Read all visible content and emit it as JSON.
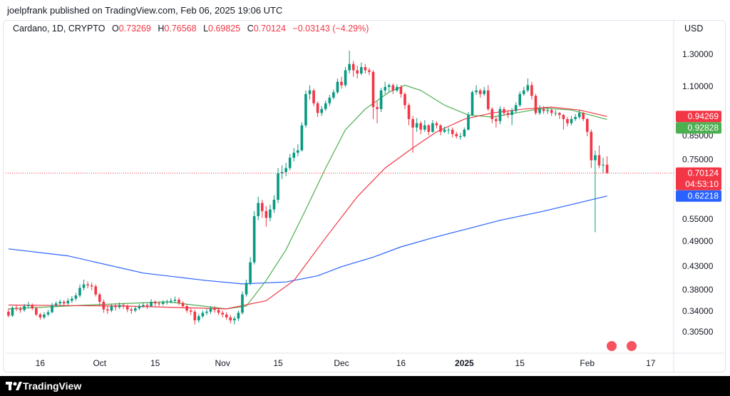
{
  "header": {
    "published": "joelpfrank published on TradingView.com, Feb 06, 2025 19:06 UTC",
    "brand": "TradingView"
  },
  "chart_data": {
    "type": "candlestick",
    "title": "Cardano, 1D, CRYPTO",
    "ohlc_letters": [
      "O",
      "H",
      "L",
      "C"
    ],
    "change_label": "−0.03143 (−4.29%)",
    "currency": "USD",
    "countdown": "04:53:10",
    "up_color": "#089981",
    "down_color": "#f23645",
    "log_scale": true,
    "grid": false,
    "ylim": [
      0.2737,
      1.549
    ],
    "yticks": [
      {
        "value": 1.3,
        "label": "1.30000"
      },
      {
        "value": 1.1,
        "label": "1.10000"
      },
      {
        "value": 0.85,
        "label": "0.85000"
      },
      {
        "value": 0.75,
        "label": "0.75000"
      },
      {
        "value": 0.55,
        "label": "0.55000"
      },
      {
        "value": 0.49,
        "label": "0.49000"
      },
      {
        "value": 0.43,
        "label": "0.43000"
      },
      {
        "value": 0.38,
        "label": "0.38000"
      },
      {
        "value": 0.34,
        "label": "0.34000"
      },
      {
        "value": 0.305,
        "label": "0.30500"
      }
    ],
    "xlim": [
      -0.7,
      167.8
    ],
    "xticks": [
      {
        "value": 8,
        "label": "16"
      },
      {
        "value": 23,
        "label": "Oct"
      },
      {
        "value": 37,
        "label": "15"
      },
      {
        "value": 54,
        "label": "Nov"
      },
      {
        "value": 68,
        "label": "15"
      },
      {
        "value": 84,
        "label": "Dec"
      },
      {
        "value": 99,
        "label": "16"
      },
      {
        "value": 115,
        "label": "2025"
      },
      {
        "value": 129,
        "label": "15"
      },
      {
        "value": 146,
        "label": "Feb"
      },
      {
        "value": 162,
        "label": "17"
      }
    ],
    "candles": [
      [
        0.34,
        0.346,
        0.33,
        0.333
      ],
      [
        0.333,
        0.35,
        0.331,
        0.347
      ],
      [
        0.347,
        0.352,
        0.341,
        0.345
      ],
      [
        0.345,
        0.349,
        0.338,
        0.343
      ],
      [
        0.343,
        0.354,
        0.34,
        0.35
      ],
      [
        0.35,
        0.358,
        0.346,
        0.352
      ],
      [
        0.352,
        0.355,
        0.343,
        0.346
      ],
      [
        0.346,
        0.349,
        0.332,
        0.335
      ],
      [
        0.335,
        0.338,
        0.326,
        0.33
      ],
      [
        0.33,
        0.339,
        0.327,
        0.335
      ],
      [
        0.335,
        0.343,
        0.332,
        0.339
      ],
      [
        0.339,
        0.356,
        0.337,
        0.352
      ],
      [
        0.352,
        0.359,
        0.348,
        0.355
      ],
      [
        0.355,
        0.362,
        0.35,
        0.358
      ],
      [
        0.358,
        0.361,
        0.35,
        0.355
      ],
      [
        0.355,
        0.365,
        0.352,
        0.36
      ],
      [
        0.36,
        0.369,
        0.356,
        0.364
      ],
      [
        0.364,
        0.375,
        0.36,
        0.37
      ],
      [
        0.37,
        0.392,
        0.366,
        0.385
      ],
      [
        0.385,
        0.402,
        0.38,
        0.392
      ],
      [
        0.392,
        0.398,
        0.384,
        0.39
      ],
      [
        0.39,
        0.396,
        0.38,
        0.388
      ],
      [
        0.388,
        0.392,
        0.368,
        0.372
      ],
      [
        0.372,
        0.375,
        0.35,
        0.358
      ],
      [
        0.358,
        0.362,
        0.338,
        0.344
      ],
      [
        0.344,
        0.35,
        0.336,
        0.342
      ],
      [
        0.342,
        0.354,
        0.339,
        0.35
      ],
      [
        0.35,
        0.355,
        0.342,
        0.348
      ],
      [
        0.348,
        0.357,
        0.345,
        0.352
      ],
      [
        0.352,
        0.356,
        0.345,
        0.35
      ],
      [
        0.35,
        0.353,
        0.339,
        0.344
      ],
      [
        0.344,
        0.348,
        0.336,
        0.342
      ],
      [
        0.342,
        0.35,
        0.339,
        0.346
      ],
      [
        0.346,
        0.354,
        0.343,
        0.35
      ],
      [
        0.35,
        0.357,
        0.347,
        0.352
      ],
      [
        0.352,
        0.355,
        0.345,
        0.35
      ],
      [
        0.35,
        0.363,
        0.348,
        0.358
      ],
      [
        0.358,
        0.361,
        0.35,
        0.355
      ],
      [
        0.355,
        0.359,
        0.35,
        0.354
      ],
      [
        0.354,
        0.361,
        0.351,
        0.357
      ],
      [
        0.357,
        0.362,
        0.353,
        0.358
      ],
      [
        0.358,
        0.365,
        0.355,
        0.36
      ],
      [
        0.36,
        0.368,
        0.356,
        0.362
      ],
      [
        0.362,
        0.366,
        0.352,
        0.356
      ],
      [
        0.356,
        0.359,
        0.346,
        0.35
      ],
      [
        0.35,
        0.353,
        0.338,
        0.342
      ],
      [
        0.342,
        0.346,
        0.334,
        0.34
      ],
      [
        0.34,
        0.343,
        0.318,
        0.325
      ],
      [
        0.325,
        0.336,
        0.321,
        0.332
      ],
      [
        0.332,
        0.342,
        0.329,
        0.338
      ],
      [
        0.338,
        0.345,
        0.334,
        0.34
      ],
      [
        0.34,
        0.35,
        0.336,
        0.346
      ],
      [
        0.346,
        0.35,
        0.338,
        0.343
      ],
      [
        0.343,
        0.347,
        0.334,
        0.338
      ],
      [
        0.338,
        0.342,
        0.33,
        0.335
      ],
      [
        0.335,
        0.339,
        0.326,
        0.33
      ],
      [
        0.33,
        0.334,
        0.32,
        0.325
      ],
      [
        0.325,
        0.332,
        0.318,
        0.328
      ],
      [
        0.328,
        0.342,
        0.324,
        0.338
      ],
      [
        0.338,
        0.378,
        0.335,
        0.372
      ],
      [
        0.372,
        0.402,
        0.368,
        0.395
      ],
      [
        0.395,
        0.452,
        0.39,
        0.44
      ],
      [
        0.44,
        0.575,
        0.435,
        0.56
      ],
      [
        0.56,
        0.62,
        0.548,
        0.6
      ],
      [
        0.6,
        0.61,
        0.555,
        0.575
      ],
      [
        0.575,
        0.59,
        0.53,
        0.555
      ],
      [
        0.555,
        0.595,
        0.545,
        0.58
      ],
      [
        0.58,
        0.625,
        0.57,
        0.61
      ],
      [
        0.61,
        0.72,
        0.6,
        0.7
      ],
      [
        0.7,
        0.73,
        0.68,
        0.705
      ],
      [
        0.705,
        0.74,
        0.69,
        0.72
      ],
      [
        0.72,
        0.775,
        0.712,
        0.76
      ],
      [
        0.76,
        0.8,
        0.745,
        0.78
      ],
      [
        0.78,
        0.815,
        0.765,
        0.79
      ],
      [
        0.79,
        0.915,
        0.785,
        0.9
      ],
      [
        0.9,
        1.08,
        0.89,
        1.06
      ],
      [
        1.06,
        1.11,
        1.03,
        1.08
      ],
      [
        1.08,
        1.09,
        0.995,
        1.01
      ],
      [
        1.01,
        1.02,
        0.94,
        0.96
      ],
      [
        0.96,
        0.995,
        0.945,
        0.98
      ],
      [
        0.98,
        1.025,
        0.97,
        1.01
      ],
      [
        1.01,
        1.055,
        0.995,
        1.04
      ],
      [
        1.04,
        1.085,
        1.03,
        1.07
      ],
      [
        1.07,
        1.15,
        1.06,
        1.13
      ],
      [
        1.13,
        1.16,
        1.09,
        1.11
      ],
      [
        1.11,
        1.22,
        1.1,
        1.2
      ],
      [
        1.2,
        1.33,
        1.18,
        1.24
      ],
      [
        1.24,
        1.26,
        1.16,
        1.2
      ],
      [
        1.2,
        1.23,
        1.15,
        1.18
      ],
      [
        1.18,
        1.25,
        1.17,
        1.22
      ],
      [
        1.22,
        1.24,
        1.18,
        1.2
      ],
      [
        1.2,
        1.215,
        1.17,
        1.19
      ],
      [
        1.19,
        1.2,
        0.93,
        0.99
      ],
      [
        0.99,
        1.02,
        0.91,
        0.98
      ],
      [
        0.98,
        1.095,
        0.965,
        1.08
      ],
      [
        1.08,
        1.13,
        1.06,
        1.1
      ],
      [
        1.1,
        1.12,
        1.07,
        1.11
      ],
      [
        1.11,
        1.12,
        1.06,
        1.08
      ],
      [
        1.08,
        1.115,
        1.07,
        1.1
      ],
      [
        1.1,
        1.11,
        1.04,
        1.06
      ],
      [
        1.06,
        1.07,
        0.98,
        1.0
      ],
      [
        1.0,
        1.01,
        0.9,
        0.93
      ],
      [
        0.93,
        0.945,
        0.78,
        0.89
      ],
      [
        0.89,
        0.935,
        0.87,
        0.91
      ],
      [
        0.91,
        0.92,
        0.86,
        0.88
      ],
      [
        0.88,
        0.925,
        0.87,
        0.9
      ],
      [
        0.9,
        0.905,
        0.855,
        0.87
      ],
      [
        0.87,
        0.925,
        0.865,
        0.91
      ],
      [
        0.91,
        0.92,
        0.885,
        0.9
      ],
      [
        0.9,
        0.905,
        0.855,
        0.87
      ],
      [
        0.87,
        0.895,
        0.865,
        0.88
      ],
      [
        0.88,
        0.89,
        0.86,
        0.88
      ],
      [
        0.88,
        0.89,
        0.845,
        0.86
      ],
      [
        0.86,
        0.87,
        0.84,
        0.85
      ],
      [
        0.85,
        0.865,
        0.835,
        0.85
      ],
      [
        0.85,
        0.89,
        0.845,
        0.88
      ],
      [
        0.88,
        0.965,
        0.875,
        0.95
      ],
      [
        0.95,
        1.08,
        0.945,
        1.07
      ],
      [
        1.07,
        1.11,
        1.055,
        1.08
      ],
      [
        1.08,
        1.09,
        1.04,
        1.06
      ],
      [
        1.06,
        1.1,
        1.05,
        1.08
      ],
      [
        1.08,
        1.11,
        0.97,
        0.98
      ],
      [
        0.98,
        0.99,
        0.91,
        0.93
      ],
      [
        0.93,
        0.945,
        0.89,
        0.92
      ],
      [
        0.92,
        0.995,
        0.905,
        0.98
      ],
      [
        0.98,
        0.99,
        0.945,
        0.96
      ],
      [
        0.96,
        0.975,
        0.935,
        0.95
      ],
      [
        0.95,
        0.985,
        0.9,
        0.97
      ],
      [
        0.97,
        1.015,
        0.96,
        1.0
      ],
      [
        1.0,
        1.075,
        0.99,
        1.06
      ],
      [
        1.06,
        1.1,
        1.05,
        1.08
      ],
      [
        1.08,
        1.15,
        1.07,
        1.11
      ],
      [
        1.11,
        1.13,
        1.03,
        1.05
      ],
      [
        1.05,
        1.06,
        0.95,
        0.96
      ],
      [
        0.96,
        1.0,
        0.95,
        0.98
      ],
      [
        0.98,
        0.995,
        0.955,
        0.97
      ],
      [
        0.97,
        0.99,
        0.955,
        0.975
      ],
      [
        0.975,
        0.985,
        0.945,
        0.96
      ],
      [
        0.96,
        0.975,
        0.945,
        0.96
      ],
      [
        0.96,
        0.965,
        0.93,
        0.95
      ],
      [
        0.95,
        0.955,
        0.88,
        0.93
      ],
      [
        0.93,
        0.94,
        0.895,
        0.91
      ],
      [
        0.91,
        0.945,
        0.9,
        0.93
      ],
      [
        0.93,
        0.955,
        0.92,
        0.94
      ],
      [
        0.94,
        0.975,
        0.93,
        0.96
      ],
      [
        0.96,
        0.965,
        0.92,
        0.93
      ],
      [
        0.93,
        0.935,
        0.85,
        0.87
      ],
      [
        0.87,
        0.88,
        0.72,
        0.75
      ],
      [
        0.75,
        0.79,
        0.515,
        0.77
      ],
      [
        0.77,
        0.81,
        0.72,
        0.73
      ],
      [
        0.73,
        0.76,
        0.7,
        0.73269
      ],
      [
        0.73269,
        0.76568,
        0.69825,
        0.70124
      ]
    ],
    "series": [
      {
        "color": "#2962ff",
        "x": [
          0,
          15,
          34,
          50,
          59,
          70,
          78,
          84,
          92,
          99,
          107,
          115,
          124,
          135,
          142,
          151
        ],
        "values": [
          0.472,
          0.455,
          0.416,
          0.4,
          0.393,
          0.397,
          0.41,
          0.43,
          0.452,
          0.477,
          0.5,
          0.522,
          0.548,
          0.575,
          0.595,
          0.62218
        ]
      },
      {
        "color": "#4caf50",
        "x": [
          0,
          20,
          40,
          55,
          60,
          65,
          70,
          75,
          80,
          85,
          90,
          96,
          100,
          104,
          110,
          116,
          122,
          128,
          135,
          142,
          151
        ],
        "values": [
          0.345,
          0.352,
          0.358,
          0.345,
          0.35,
          0.4,
          0.47,
          0.58,
          0.72,
          0.88,
          0.98,
          1.07,
          1.11,
          1.08,
          1.0,
          0.95,
          0.94,
          0.96,
          0.985,
          0.975,
          0.92828
        ]
      },
      {
        "color": "#f23645",
        "x": [
          0,
          30,
          55,
          65,
          72,
          80,
          88,
          95,
          102,
          108,
          115,
          122,
          130,
          137,
          144,
          151
        ],
        "values": [
          0.352,
          0.35,
          0.345,
          0.36,
          0.4,
          0.5,
          0.62,
          0.72,
          0.8,
          0.87,
          0.93,
          0.96,
          0.98,
          0.99,
          0.975,
          0.94269
        ]
      }
    ]
  }
}
